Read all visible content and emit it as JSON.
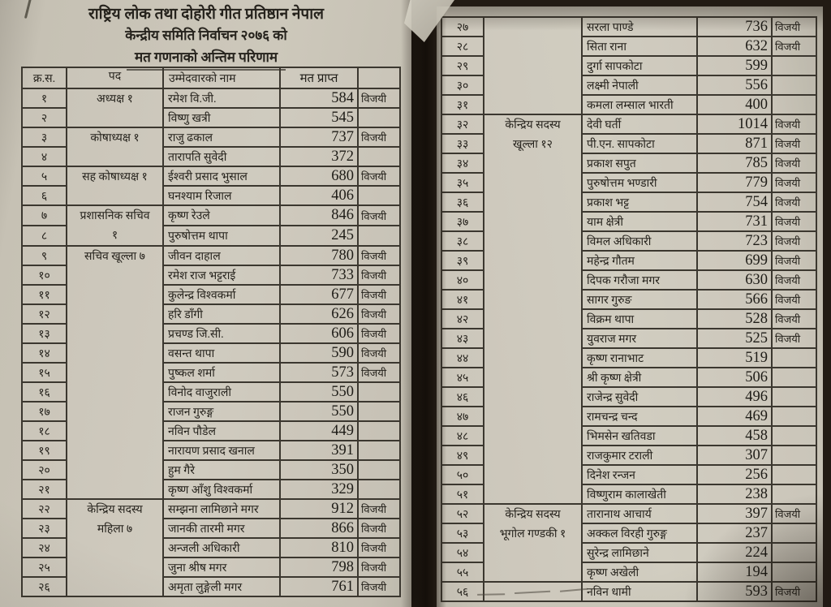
{
  "document": {
    "title_line1": "राष्ट्रिय लोक तथा दोहोरी गीत प्रतिष्ठान नेपाल",
    "title_line2": "केन्द्रीय समिति निर्वाचन २०७६ को",
    "title_line3": "मत गणनाको अन्तिम परिणाम"
  },
  "table": {
    "headers": [
      "क्र.स.",
      "पद",
      "उम्मेदवारको नाम",
      "मत प्राप्त",
      ""
    ]
  },
  "colors": {
    "paper": "#cdc8bb",
    "ink": "#26231d",
    "table_line": "#3b372f",
    "background": "#221b14"
  },
  "winner_label": "विजयी",
  "pages": [
    {
      "rows": [
        {
          "sn": "१",
          "post": [
            "अध्यक्ष  १"
          ],
          "span": 2,
          "name": "रमेश वि.जी.",
          "votes": "584",
          "result": "विजयी"
        },
        {
          "sn": "२",
          "name": "विष्णु खत्री",
          "votes": "545",
          "result": ""
        },
        {
          "sn": "३",
          "post": [
            "कोषाध्यक्ष  १"
          ],
          "span": 2,
          "name": "राजु ढकाल",
          "votes": "737",
          "result": "विजयी"
        },
        {
          "sn": "४",
          "name": "तारापति सुवेदी",
          "votes": "372",
          "result": ""
        },
        {
          "sn": "५",
          "post": [
            "सह  कोषाध्यक्ष  १"
          ],
          "span": 2,
          "name": "ईश्वरी प्रसाद भुसाल",
          "votes": "680",
          "result": "विजयी"
        },
        {
          "sn": "६",
          "name": "घनश्याम रिजाल",
          "votes": "406",
          "result": ""
        },
        {
          "sn": "७",
          "post": [
            "प्रशासनिक  सचिव",
            "१"
          ],
          "span": 2,
          "name": "कृष्ण रेउले",
          "votes": "846",
          "result": "विजयी"
        },
        {
          "sn": "८",
          "name": "पुरुषोत्तम थापा",
          "votes": "245",
          "result": ""
        },
        {
          "sn": "९",
          "post": [
            "सचिव  खूल्ला  ७"
          ],
          "span": 13,
          "name": "जीवन दाहाल",
          "votes": "780",
          "result": "विजयी"
        },
        {
          "sn": "१०",
          "name": "रमेश राज भट्टराई",
          "votes": "733",
          "result": "विजयी"
        },
        {
          "sn": "११",
          "name": "कुलेन्द्र विश्वकर्मा",
          "votes": "677",
          "result": "विजयी"
        },
        {
          "sn": "१२",
          "name": "हरि डाँगी",
          "votes": "626",
          "result": "विजयी"
        },
        {
          "sn": "१३",
          "name": "प्रचण्ड जि.सी.",
          "votes": "606",
          "result": "विजयी"
        },
        {
          "sn": "१४",
          "name": "वसन्त थापा",
          "votes": "590",
          "result": "विजयी"
        },
        {
          "sn": "१५",
          "name": "पुष्कल शर्मा",
          "votes": "573",
          "result": "विजयी"
        },
        {
          "sn": "१६",
          "name": "विनोद वाजुराली",
          "votes": "550",
          "result": ""
        },
        {
          "sn": "१७",
          "name": "राजन गुरुङ्ग",
          "votes": "550",
          "result": ""
        },
        {
          "sn": "१८",
          "name": "नविन पौडेल",
          "votes": "449",
          "result": ""
        },
        {
          "sn": "१९",
          "name": "नारायण प्रसाद खनाल",
          "votes": "391",
          "result": ""
        },
        {
          "sn": "२०",
          "name": "हुम गैरे",
          "votes": "350",
          "result": ""
        },
        {
          "sn": "२१",
          "name": "कृष्ण आँशु विश्वकर्मा",
          "votes": "329",
          "result": ""
        },
        {
          "sn": "२२",
          "post": [
            "केन्द्रिय  सदस्य",
            "महिला  ७"
          ],
          "span": 5,
          "name": "सम्झना लामिछाने मगर",
          "votes": "912",
          "result": "विजयी"
        },
        {
          "sn": "२३",
          "name": "जानकी तारमी मगर",
          "votes": "866",
          "result": "विजयी"
        },
        {
          "sn": "२४",
          "name": "अन्जली अधिकारी",
          "votes": "810",
          "result": "विजयी"
        },
        {
          "sn": "२५",
          "name": "जुना श्रीष मगर",
          "votes": "798",
          "result": "विजयी"
        },
        {
          "sn": "२६",
          "name": "अमृता लुङ्गेली मगर",
          "votes": "761",
          "result": "विजयी"
        }
      ]
    },
    {
      "rows": [
        {
          "sn": "२७",
          "post": [],
          "span": 5,
          "name": "सरला पाण्डे",
          "votes": "736",
          "result": "विजयी"
        },
        {
          "sn": "२८",
          "name": "सिता राना",
          "votes": "632",
          "result": "विजयी"
        },
        {
          "sn": "२९",
          "name": "दुर्गा सापकोटा",
          "votes": "599",
          "result": ""
        },
        {
          "sn": "३०",
          "name": "लक्ष्मी नेपाली",
          "votes": "556",
          "result": ""
        },
        {
          "sn": "३१",
          "name": "कमला लम्साल भारती",
          "votes": "400",
          "result": ""
        },
        {
          "sn": "३२",
          "post": [
            "केन्द्रिय  सदस्य",
            "खूल्ला  १२"
          ],
          "span": 20,
          "name": "देवी घर्ती",
          "votes": "1014",
          "result": "विजयी"
        },
        {
          "sn": "३३",
          "name": "पी.एन. सापकोटा",
          "votes": "871",
          "result": "विजयी"
        },
        {
          "sn": "३४",
          "name": "प्रकाश सपुत",
          "votes": "785",
          "result": "विजयी"
        },
        {
          "sn": "३५",
          "name": "पुरुषोत्तम भण्डारी",
          "votes": "779",
          "result": "विजयी"
        },
        {
          "sn": "३६",
          "name": "प्रकाश भट्ट",
          "votes": "754",
          "result": "विजयी"
        },
        {
          "sn": "३७",
          "name": "याम क्षेत्री",
          "votes": "731",
          "result": "विजयी"
        },
        {
          "sn": "३८",
          "name": "विमल अधिकारी",
          "votes": "723",
          "result": "विजयी"
        },
        {
          "sn": "३९",
          "name": "महेन्द्र गौतम",
          "votes": "699",
          "result": "विजयी"
        },
        {
          "sn": "४०",
          "name": "दिपक गरौजा मगर",
          "votes": "630",
          "result": "विजयी"
        },
        {
          "sn": "४१",
          "name": "सागर गुरुङ",
          "votes": "566",
          "result": "विजयी"
        },
        {
          "sn": "४२",
          "name": "विक्रम थापा",
          "votes": "528",
          "result": "विजयी"
        },
        {
          "sn": "४३",
          "name": "युवराज मगर",
          "votes": "525",
          "result": "विजयी"
        },
        {
          "sn": "४४",
          "name": "कृष्ण रानाभाट",
          "votes": "519",
          "result": ""
        },
        {
          "sn": "४५",
          "name": "श्री कृष्ण क्षेत्री",
          "votes": "506",
          "result": ""
        },
        {
          "sn": "४६",
          "name": "राजेन्द्र सुवेदी",
          "votes": "496",
          "result": ""
        },
        {
          "sn": "४७",
          "name": "रामचन्द्र चन्द",
          "votes": "469",
          "result": ""
        },
        {
          "sn": "४८",
          "name": "भिमसेन खतिवडा",
          "votes": "458",
          "result": ""
        },
        {
          "sn": "४९",
          "name": "राजकुमार टराली",
          "votes": "307",
          "result": ""
        },
        {
          "sn": "५०",
          "name": "दिनेश रन्जन",
          "votes": "256",
          "result": ""
        },
        {
          "sn": "५१",
          "name": "विष्णुराम कालाखेती",
          "votes": "238",
          "result": ""
        },
        {
          "sn": "५२",
          "post": [
            "केन्द्रिय  सदस्य",
            "भूगोल गण्डकी १"
          ],
          "span": 4,
          "name": "तारानाथ आचार्य",
          "votes": "397",
          "result": "विजयी"
        },
        {
          "sn": "५३",
          "name": "अक्कल विरही गुरुङ्ग",
          "votes": "237",
          "result": ""
        },
        {
          "sn": "५४",
          "name": "सुरेन्द्र लामिछाने",
          "votes": "224",
          "result": ""
        },
        {
          "sn": "५५",
          "name": "कृष्ण अखेली",
          "votes": "194",
          "result": ""
        },
        {
          "sn": "५६",
          "post": [],
          "span": 1,
          "name": "नविन धामी",
          "votes": "593",
          "result": "विजयी"
        }
      ]
    }
  ]
}
